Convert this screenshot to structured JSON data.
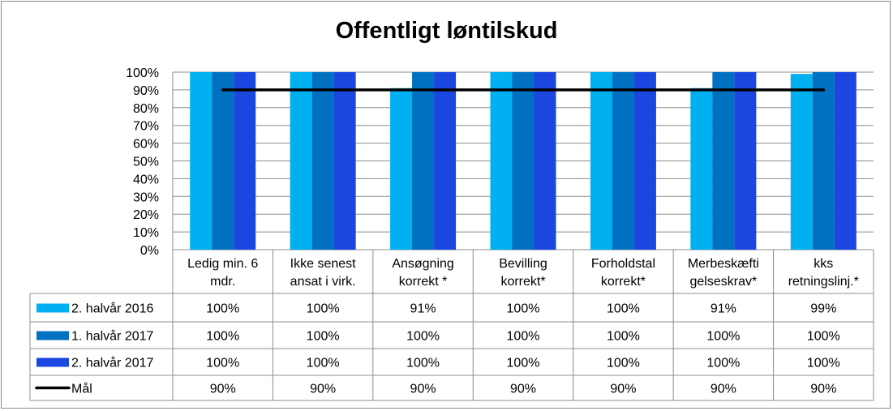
{
  "chart_data": {
    "type": "bar",
    "title": "Offentligt løntilskud",
    "categories": [
      [
        "Ledig min. 6",
        "mdr."
      ],
      [
        "Ikke senest",
        "ansat i virk."
      ],
      [
        "Ansøgning",
        "korrekt *"
      ],
      [
        "Bevilling",
        "korrekt*"
      ],
      [
        "Forholdstal",
        "korrekt*"
      ],
      [
        "Merbeskæfti",
        "gelseskrav*"
      ],
      [
        "kks",
        "retningslinj.*"
      ]
    ],
    "series": [
      {
        "name": "2. halvår 2016",
        "color": "#00b0f0",
        "values": [
          100,
          100,
          91,
          100,
          100,
          91,
          99
        ],
        "labels": [
          "100%",
          "100%",
          "91%",
          "100%",
          "100%",
          "91%",
          "99%"
        ]
      },
      {
        "name": "1. halvår 2017",
        "color": "#0070c0",
        "values": [
          100,
          100,
          100,
          100,
          100,
          100,
          100
        ],
        "labels": [
          "100%",
          "100%",
          "100%",
          "100%",
          "100%",
          "100%",
          "100%"
        ]
      },
      {
        "name": "2. halvår 2017",
        "color": "#1b46e0",
        "values": [
          100,
          100,
          100,
          100,
          100,
          100,
          100
        ],
        "labels": [
          "100%",
          "100%",
          "100%",
          "100%",
          "100%",
          "100%",
          "100%"
        ]
      }
    ],
    "target": {
      "name": "Mål",
      "type": "line",
      "color": "#000000",
      "values": [
        90,
        90,
        90,
        90,
        90,
        90,
        90
      ],
      "labels": [
        "90%",
        "90%",
        "90%",
        "90%",
        "90%",
        "90%",
        "90%"
      ]
    },
    "ylim": [
      0,
      100
    ],
    "yticks": [
      "0%",
      "10%",
      "20%",
      "30%",
      "40%",
      "50%",
      "60%",
      "70%",
      "80%",
      "90%",
      "100%"
    ],
    "grid": true,
    "legend": "data-table"
  }
}
